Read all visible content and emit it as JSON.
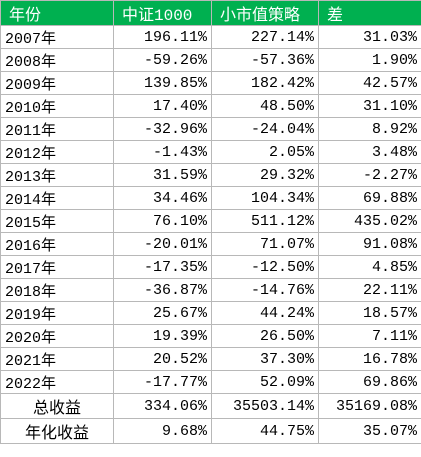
{
  "table": {
    "header": [
      "年份",
      "中证1000",
      "小市值策略",
      "差"
    ],
    "rows": [
      [
        "2007年",
        "196.11%",
        "227.14%",
        "31.03%"
      ],
      [
        "2008年",
        "-59.26%",
        "-57.36%",
        "1.90%"
      ],
      [
        "2009年",
        "139.85%",
        "182.42%",
        "42.57%"
      ],
      [
        "2010年",
        "17.40%",
        "48.50%",
        "31.10%"
      ],
      [
        "2011年",
        "-32.96%",
        "-24.04%",
        "8.92%"
      ],
      [
        "2012年",
        "-1.43%",
        "2.05%",
        "3.48%"
      ],
      [
        "2013年",
        "31.59%",
        "29.32%",
        "-2.27%"
      ],
      [
        "2014年",
        "34.46%",
        "104.34%",
        "69.88%"
      ],
      [
        "2015年",
        "76.10%",
        "511.12%",
        "435.02%"
      ],
      [
        "2016年",
        "-20.01%",
        "71.07%",
        "91.08%"
      ],
      [
        "2017年",
        "-17.35%",
        "-12.50%",
        "4.85%"
      ],
      [
        "2018年",
        "-36.87%",
        "-14.76%",
        "22.11%"
      ],
      [
        "2019年",
        "25.67%",
        "44.24%",
        "18.57%"
      ],
      [
        "2020年",
        "19.39%",
        "26.50%",
        "7.11%"
      ],
      [
        "2021年",
        "20.52%",
        "37.30%",
        "16.78%"
      ],
      [
        "2022年",
        "-17.77%",
        "52.09%",
        "69.86%"
      ],
      [
        "总收益",
        "334.06%",
        "35503.14%",
        "35169.08%"
      ],
      [
        "年化收益",
        "9.68%",
        "44.75%",
        "35.07%"
      ]
    ]
  }
}
